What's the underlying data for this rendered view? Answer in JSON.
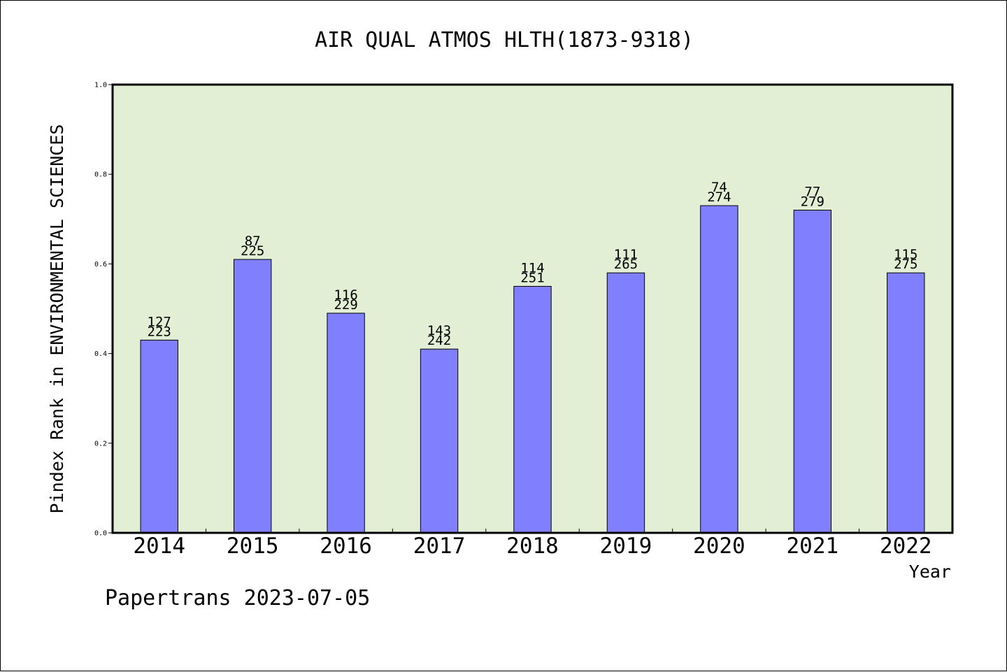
{
  "chart_data": {
    "type": "bar",
    "title": "AIR QUAL ATMOS HLTH(1873-9318)",
    "xlabel": "Year",
    "ylabel": "Pindex Rank in ENVIRONMENTAL SCIENCES",
    "categories": [
      "2014",
      "2015",
      "2016",
      "2017",
      "2018",
      "2019",
      "2020",
      "2021",
      "2022"
    ],
    "values": [
      0.43,
      0.61,
      0.49,
      0.41,
      0.55,
      0.58,
      0.73,
      0.72,
      0.58
    ],
    "rank_labels": [
      "127",
      "87",
      "116",
      "143",
      "114",
      "111",
      "74",
      "77",
      "115"
    ],
    "total_labels": [
      "223",
      "225",
      "229",
      "242",
      "251",
      "265",
      "274",
      "279",
      "275"
    ],
    "ylim": [
      0,
      1.0
    ],
    "yticks": [
      "0.0",
      "0.2",
      "0.4",
      "0.6",
      "0.8",
      "1.0"
    ],
    "grid": false,
    "legend": "none",
    "colors": {
      "plot_bg": "#e2efd5",
      "bar": "#8080ff",
      "bar_edge": "#000000"
    }
  },
  "footer": "Papertrans 2023-07-05"
}
